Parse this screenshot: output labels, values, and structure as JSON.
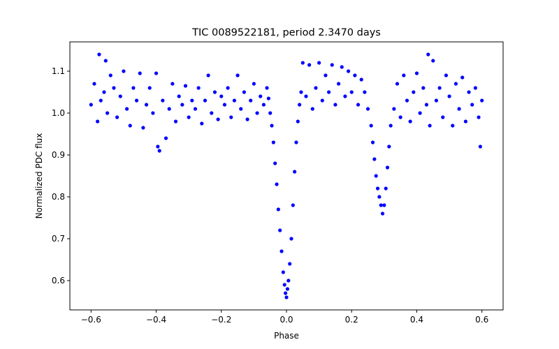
{
  "chart_data": {
    "type": "scatter",
    "title": "TIC 0089522181, period 2.3470 days",
    "xlabel": "Phase",
    "ylabel": "Normalized PDC flux",
    "xlim": [
      -0.665,
      0.665
    ],
    "ylim": [
      0.53,
      1.17
    ],
    "xticks": [
      -0.6,
      -0.4,
      -0.2,
      0.0,
      0.2,
      0.4,
      0.6
    ],
    "xtick_labels": [
      "−0.6",
      "−0.4",
      "−0.2",
      "0.0",
      "0.2",
      "0.4",
      "0.6"
    ],
    "yticks": [
      0.6,
      0.7,
      0.8,
      0.9,
      1.0,
      1.1
    ],
    "ytick_labels": [
      "0.6",
      "0.7",
      "0.8",
      "0.9",
      "1.0",
      "1.1"
    ],
    "grid": false,
    "marker_color": "#0000ff",
    "series": [
      {
        "points": [
          [
            -0.6,
            1.02
          ],
          [
            -0.59,
            1.07
          ],
          [
            -0.58,
            0.98
          ],
          [
            -0.575,
            1.14
          ],
          [
            -0.57,
            1.03
          ],
          [
            -0.56,
            1.05
          ],
          [
            -0.555,
            1.125
          ],
          [
            -0.55,
            1.0
          ],
          [
            -0.54,
            1.09
          ],
          [
            -0.53,
            1.06
          ],
          [
            -0.52,
            0.99
          ],
          [
            -0.51,
            1.04
          ],
          [
            -0.5,
            1.1
          ],
          [
            -0.49,
            1.01
          ],
          [
            -0.48,
            0.97
          ],
          [
            -0.47,
            1.06
          ],
          [
            -0.46,
            1.03
          ],
          [
            -0.45,
            1.095
          ],
          [
            -0.44,
            0.965
          ],
          [
            -0.43,
            1.02
          ],
          [
            -0.42,
            1.06
          ],
          [
            -0.41,
            1.0
          ],
          [
            -0.4,
            1.095
          ],
          [
            -0.395,
            0.92
          ],
          [
            -0.39,
            0.91
          ],
          [
            -0.38,
            1.03
          ],
          [
            -0.37,
            0.94
          ],
          [
            -0.36,
            1.01
          ],
          [
            -0.35,
            1.07
          ],
          [
            -0.34,
            0.98
          ],
          [
            -0.33,
            1.04
          ],
          [
            -0.32,
            1.02
          ],
          [
            -0.31,
            1.065
          ],
          [
            -0.3,
            0.99
          ],
          [
            -0.29,
            1.03
          ],
          [
            -0.28,
            1.01
          ],
          [
            -0.27,
            1.06
          ],
          [
            -0.26,
            0.975
          ],
          [
            -0.25,
            1.03
          ],
          [
            -0.24,
            1.09
          ],
          [
            -0.23,
            1.0
          ],
          [
            -0.22,
            1.05
          ],
          [
            -0.21,
            0.985
          ],
          [
            -0.2,
            1.04
          ],
          [
            -0.19,
            1.02
          ],
          [
            -0.18,
            1.06
          ],
          [
            -0.17,
            0.99
          ],
          [
            -0.16,
            1.03
          ],
          [
            -0.15,
            1.09
          ],
          [
            -0.14,
            1.01
          ],
          [
            -0.13,
            1.05
          ],
          [
            -0.12,
            0.985
          ],
          [
            -0.11,
            1.03
          ],
          [
            -0.1,
            1.07
          ],
          [
            -0.09,
            1.0
          ],
          [
            -0.08,
            1.04
          ],
          [
            -0.07,
            1.02
          ],
          [
            -0.06,
            1.06
          ],
          [
            -0.055,
            1.035
          ],
          [
            -0.05,
            1.0
          ],
          [
            -0.045,
            0.97
          ],
          [
            -0.04,
            0.93
          ],
          [
            -0.035,
            0.88
          ],
          [
            -0.03,
            0.83
          ],
          [
            -0.025,
            0.77
          ],
          [
            -0.02,
            0.72
          ],
          [
            -0.015,
            0.67
          ],
          [
            -0.01,
            0.62
          ],
          [
            -0.006,
            0.59
          ],
          [
            -0.003,
            0.57
          ],
          [
            0.0,
            0.56
          ],
          [
            0.003,
            0.58
          ],
          [
            0.006,
            0.6
          ],
          [
            0.01,
            0.64
          ],
          [
            0.015,
            0.7
          ],
          [
            0.02,
            0.78
          ],
          [
            0.025,
            0.86
          ],
          [
            0.03,
            0.93
          ],
          [
            0.035,
            0.98
          ],
          [
            0.04,
            1.02
          ],
          [
            0.045,
            1.05
          ],
          [
            0.05,
            1.12
          ],
          [
            0.06,
            1.04
          ],
          [
            0.07,
            1.115
          ],
          [
            0.08,
            1.01
          ],
          [
            0.09,
            1.06
          ],
          [
            0.1,
            1.12
          ],
          [
            0.11,
            1.03
          ],
          [
            0.12,
            1.09
          ],
          [
            0.13,
            1.05
          ],
          [
            0.14,
            1.115
          ],
          [
            0.15,
            1.02
          ],
          [
            0.16,
            1.07
          ],
          [
            0.17,
            1.11
          ],
          [
            0.18,
            1.04
          ],
          [
            0.19,
            1.1
          ],
          [
            0.2,
            1.05
          ],
          [
            0.21,
            1.09
          ],
          [
            0.22,
            1.02
          ],
          [
            0.23,
            1.08
          ],
          [
            0.24,
            1.05
          ],
          [
            0.25,
            1.01
          ],
          [
            0.26,
            0.97
          ],
          [
            0.265,
            0.93
          ],
          [
            0.27,
            0.89
          ],
          [
            0.275,
            0.85
          ],
          [
            0.28,
            0.82
          ],
          [
            0.285,
            0.8
          ],
          [
            0.29,
            0.78
          ],
          [
            0.295,
            0.76
          ],
          [
            0.3,
            0.78
          ],
          [
            0.305,
            0.82
          ],
          [
            0.31,
            0.87
          ],
          [
            0.315,
            0.92
          ],
          [
            0.32,
            0.97
          ],
          [
            0.33,
            1.01
          ],
          [
            0.34,
            1.07
          ],
          [
            0.35,
            0.99
          ],
          [
            0.36,
            1.09
          ],
          [
            0.37,
            1.03
          ],
          [
            0.38,
            0.98
          ],
          [
            0.39,
            1.05
          ],
          [
            0.4,
            1.095
          ],
          [
            0.41,
            1.0
          ],
          [
            0.42,
            1.06
          ],
          [
            0.43,
            1.02
          ],
          [
            0.435,
            1.14
          ],
          [
            0.44,
            0.97
          ],
          [
            0.45,
            1.125
          ],
          [
            0.46,
            1.03
          ],
          [
            0.47,
            1.06
          ],
          [
            0.48,
            0.99
          ],
          [
            0.49,
            1.09
          ],
          [
            0.5,
            1.04
          ],
          [
            0.51,
            0.97
          ],
          [
            0.52,
            1.07
          ],
          [
            0.53,
            1.01
          ],
          [
            0.54,
            1.085
          ],
          [
            0.55,
            0.98
          ],
          [
            0.56,
            1.05
          ],
          [
            0.57,
            1.02
          ],
          [
            0.58,
            1.06
          ],
          [
            0.59,
            0.99
          ],
          [
            0.6,
            1.03
          ],
          [
            0.595,
            0.92
          ]
        ]
      }
    ]
  }
}
